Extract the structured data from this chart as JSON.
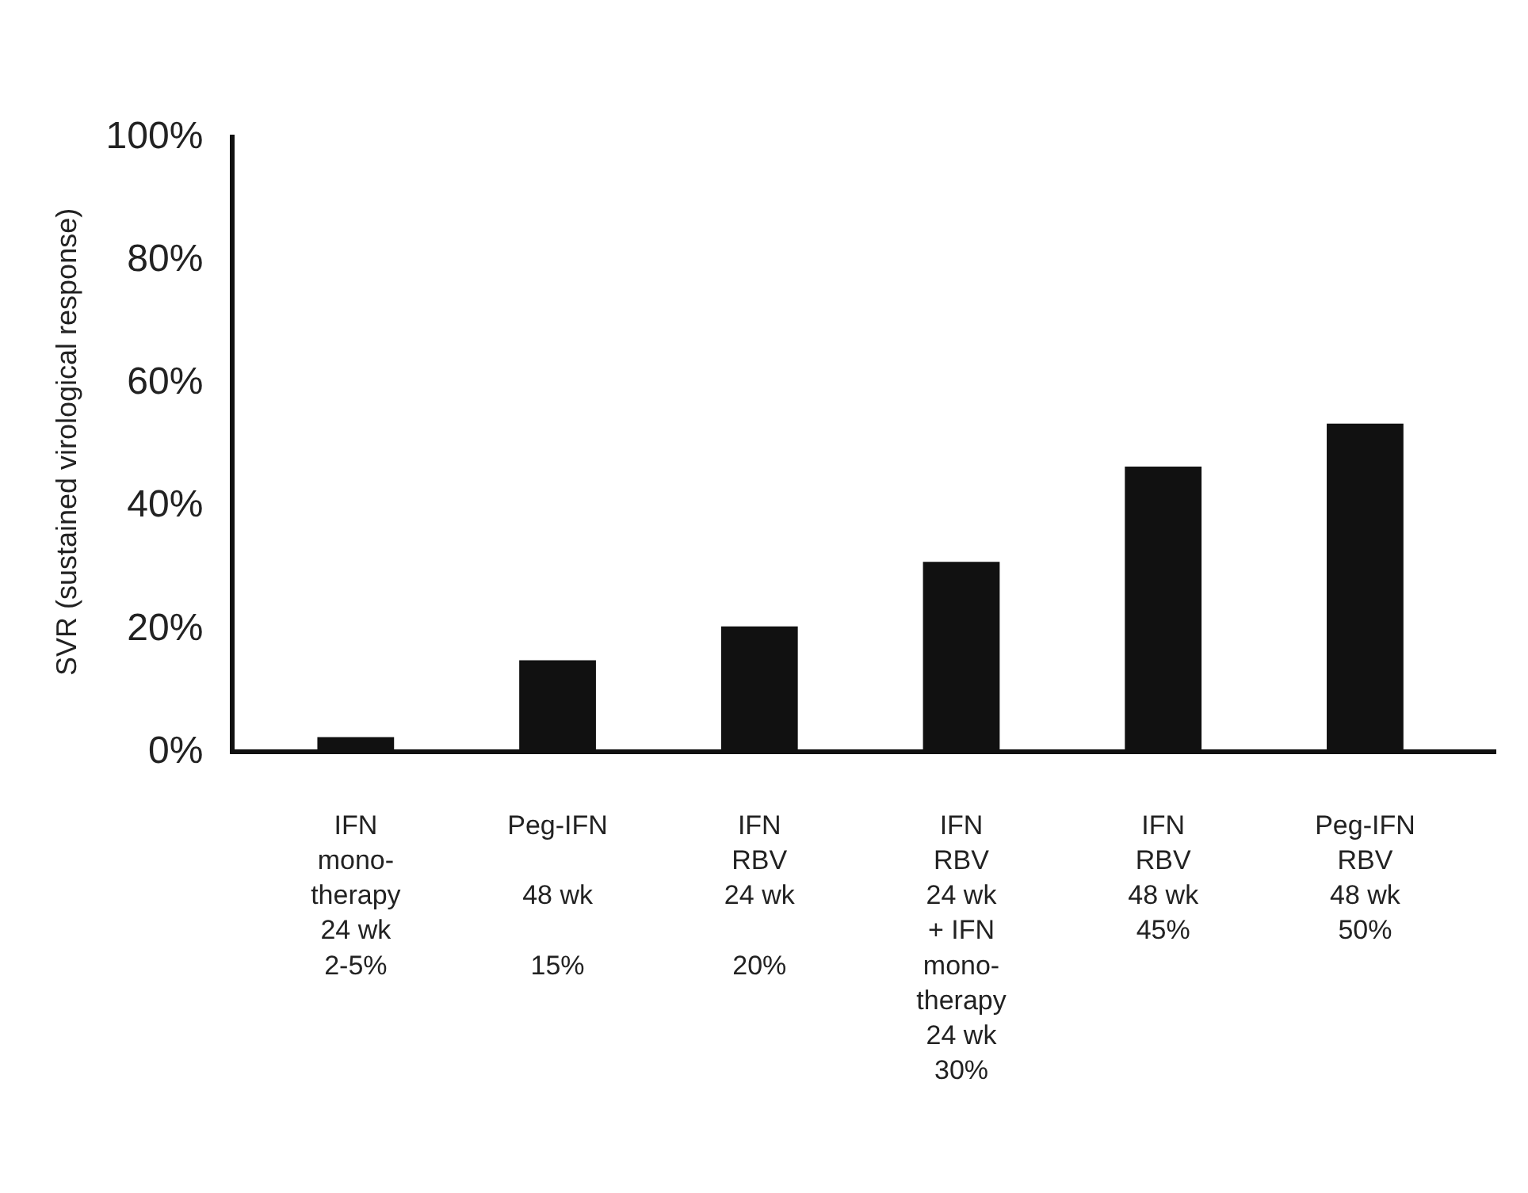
{
  "chart_data": {
    "type": "bar",
    "ylabel": "SVR (sustained virological response)",
    "categories": [
      "IFN\nmono-\ntherapy\n24 wk\n2-5%",
      "Peg-IFN\n\n48 wk\n\n15%",
      "IFN\nRBV\n24 wk\n\n20%",
      "IFN\nRBV\n24 wk\n+ IFN\nmono-\ntherapy\n24 wk\n30%",
      "IFN\nRBV\n48 wk\n45%",
      "Peg-IFN\nRBV\n48 wk\n50%"
    ],
    "values": [
      2,
      14.5,
      20,
      30.5,
      46,
      53
    ],
    "color": "#111111",
    "ylim": [
      0,
      100
    ],
    "yticks": [
      {
        "value": 0,
        "label": "0%"
      },
      {
        "value": 20,
        "label": "20%"
      },
      {
        "value": 40,
        "label": "40%"
      },
      {
        "value": 60,
        "label": "60%"
      },
      {
        "value": 80,
        "label": "80%"
      },
      {
        "value": 100,
        "label": "100%"
      }
    ],
    "grid": false
  }
}
